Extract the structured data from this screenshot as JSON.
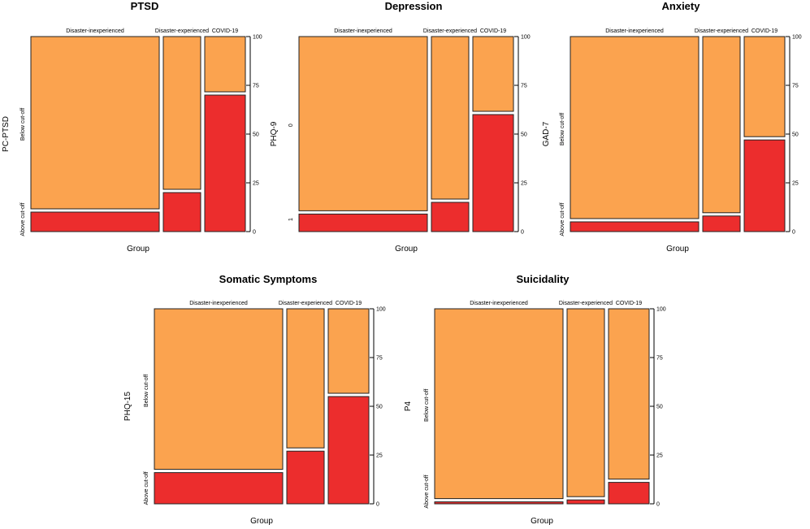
{
  "chart_data": [
    {
      "type": "mosaic",
      "title": "PTSD",
      "xlabel": "Group",
      "ylabel": "PC-PTSD",
      "row_labels": [
        "Below cut-off",
        "Above cut-off"
      ],
      "groups": [
        "Disaster-inexperienced",
        "Disaster-experienced",
        "COVID-19"
      ],
      "above_cutoff_percent": [
        10,
        20,
        70
      ],
      "ylim": [
        0,
        100
      ],
      "yticks": [
        "0",
        "25",
        "50",
        "75",
        "100"
      ]
    },
    {
      "type": "mosaic",
      "title": "Depression",
      "xlabel": "Group",
      "ylabel": "PHQ-9",
      "row_labels": [
        "0",
        "1"
      ],
      "groups": [
        "Disaster-inexperienced",
        "Disaster-experienced",
        "COVID-19"
      ],
      "above_cutoff_percent": [
        9,
        15,
        60
      ],
      "ylim": [
        0,
        100
      ],
      "yticks": [
        "0",
        "25",
        "50",
        "75",
        "100"
      ]
    },
    {
      "type": "mosaic",
      "title": "Anxiety",
      "xlabel": "Group",
      "ylabel": "GAD-7",
      "row_labels": [
        "Below cut-off",
        "Above cut-off"
      ],
      "groups": [
        "Disaster-inexperienced",
        "Disaster-experienced",
        "COVID-19"
      ],
      "above_cutoff_percent": [
        5,
        8,
        47
      ],
      "ylim": [
        0,
        100
      ],
      "yticks": [
        "0",
        "25",
        "50",
        "75",
        "100"
      ]
    },
    {
      "type": "mosaic",
      "title": "Somatic Symptoms",
      "xlabel": "Group",
      "ylabel": "PHQ-15",
      "row_labels": [
        "Below cut-off",
        "Above cut-off"
      ],
      "groups": [
        "Disaster-inexperienced",
        "Disaster-experienced",
        "COVID-19"
      ],
      "above_cutoff_percent": [
        16,
        27,
        55
      ],
      "ylim": [
        0,
        100
      ],
      "yticks": [
        "0",
        "25",
        "50",
        "75",
        "100"
      ]
    },
    {
      "type": "mosaic",
      "title": "Suicidality",
      "xlabel": "Group",
      "ylabel": "P4",
      "row_labels": [
        "Below cut-off",
        "Above cut-off"
      ],
      "groups": [
        "Disaster-inexperienced",
        "Disaster-experienced",
        "COVID-19"
      ],
      "above_cutoff_percent": [
        1,
        2,
        11
      ],
      "ylim": [
        0,
        100
      ],
      "yticks": [
        "0",
        "25",
        "50",
        "75",
        "100"
      ]
    }
  ],
  "colors": {
    "below_cutoff": "#fba34f",
    "above_cutoff": "#ec2d2d",
    "outline": "#222222"
  }
}
